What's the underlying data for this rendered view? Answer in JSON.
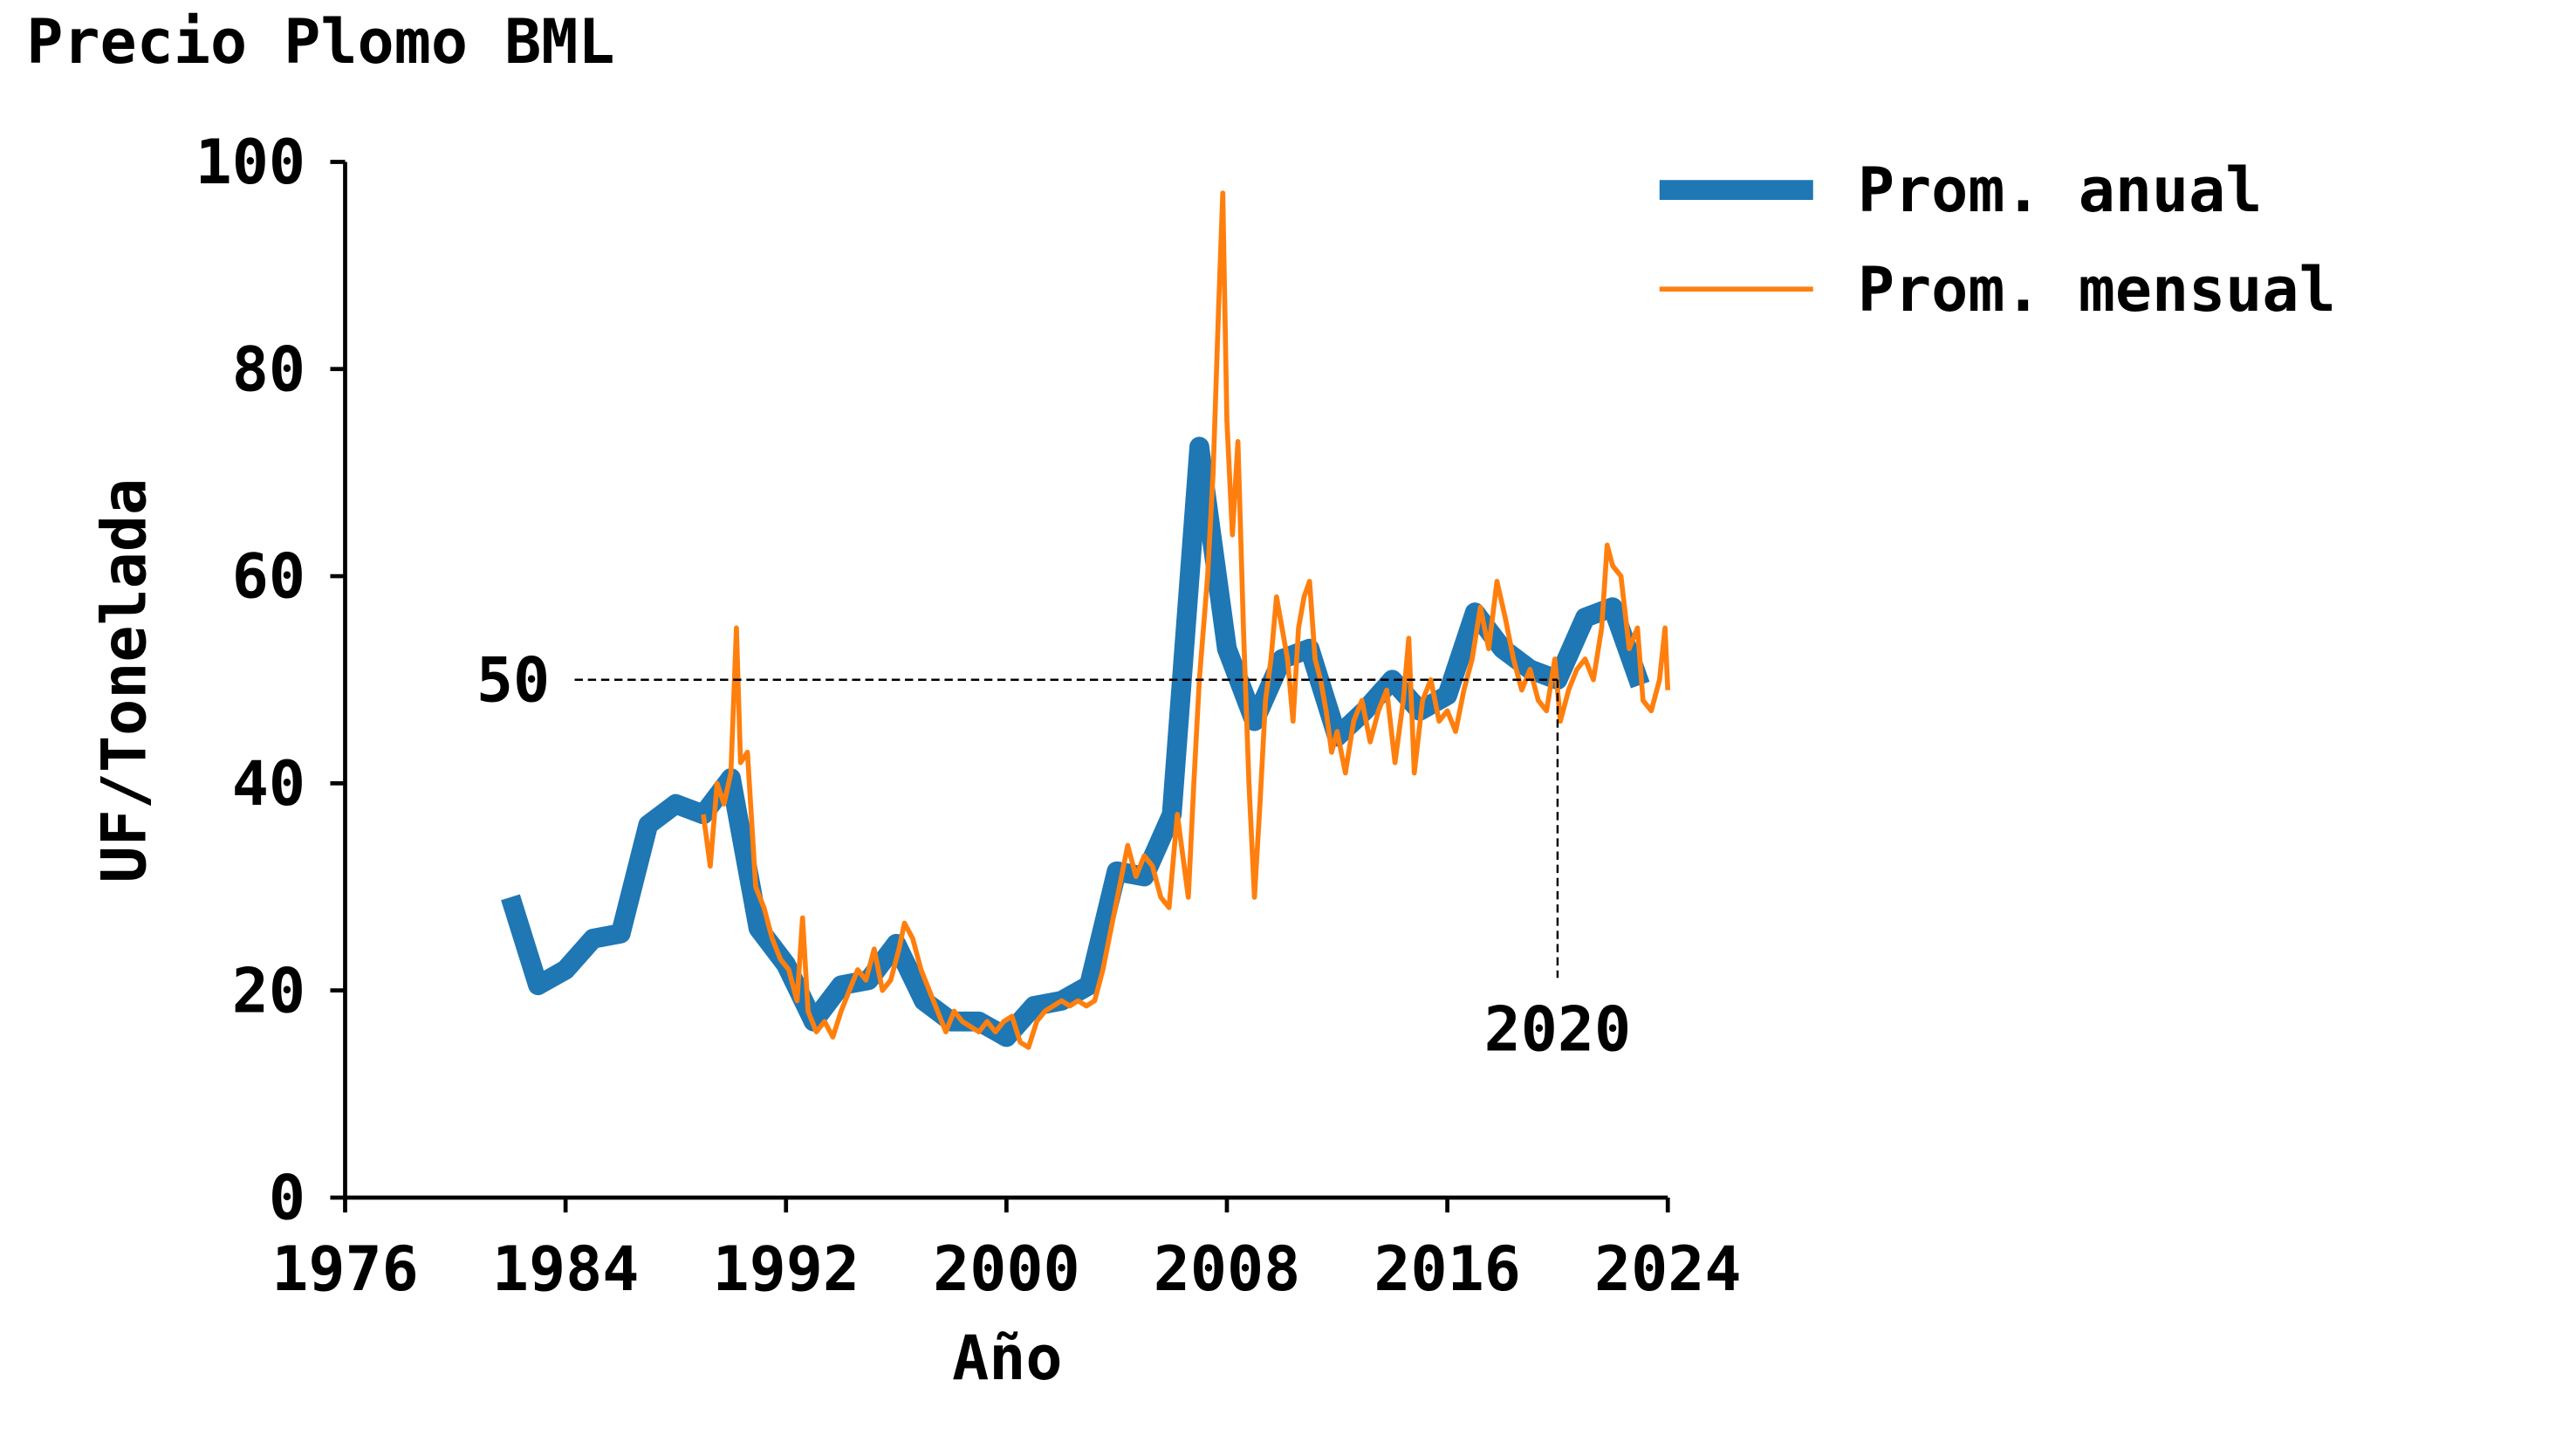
{
  "chart_data": {
    "type": "line",
    "title": "Precio Plomo BML",
    "x_label": "Año",
    "y_label": "UF/Tonelada",
    "xlim": [
      1976,
      2024
    ],
    "xticks": [
      1976,
      1984,
      1992,
      2000,
      2008,
      2016,
      2024
    ],
    "ylim": [
      0,
      100
    ],
    "yticks": [
      0,
      20,
      40,
      60,
      80,
      100
    ],
    "legend": "upper right outside",
    "series": [
      {
        "name": "Prom. anual",
        "color": "#1f77b4",
        "x": [
          1982,
          1983,
          1984,
          1985,
          1986,
          1987,
          1988,
          1989,
          1990,
          1991,
          1992,
          1993,
          1994,
          1995,
          1996,
          1997,
          1998,
          1999,
          2000,
          2001,
          2002,
          2003,
          2004,
          2005,
          2006,
          2007,
          2008,
          2009,
          2010,
          2011,
          2012,
          2013,
          2014,
          2015,
          2016,
          2017,
          2018,
          2019,
          2020,
          2021,
          2022,
          2023
        ],
        "values": [
          29,
          20.5,
          22,
          25,
          25.5,
          36,
          38,
          37,
          40.5,
          26,
          22.5,
          17,
          20.5,
          21,
          24.5,
          19,
          17,
          17,
          15.5,
          18.5,
          19,
          20.5,
          31.5,
          31,
          37,
          72.5,
          53,
          46,
          52,
          53,
          44.5,
          47,
          50,
          47,
          48.5,
          56.5,
          53,
          51,
          50,
          56,
          57,
          49.5
        ]
      },
      {
        "name": "Prom. mensual",
        "color": "#ff7f0e",
        "x": [
          1989.0,
          1989.25,
          1989.5,
          1989.75,
          1990.0,
          1990.2,
          1990.35,
          1990.6,
          1990.9,
          1991.2,
          1991.5,
          1991.8,
          1992.1,
          1992.4,
          1992.6,
          1992.8,
          1993.1,
          1993.4,
          1993.7,
          1994.0,
          1994.3,
          1994.6,
          1994.9,
          1995.2,
          1995.5,
          1995.8,
          1996.1,
          1996.3,
          1996.6,
          1996.9,
          1997.2,
          1997.5,
          1997.8,
          1998.1,
          1998.4,
          1998.7,
          1999.0,
          1999.3,
          1999.6,
          1999.9,
          2000.2,
          2000.5,
          2000.8,
          2001.1,
          2001.4,
          2001.7,
          2002.0,
          2002.3,
          2002.6,
          2002.9,
          2003.2,
          2003.5,
          2003.8,
          2004.1,
          2004.4,
          2004.7,
          2005.0,
          2005.3,
          2005.6,
          2005.9,
          2006.2,
          2006.4,
          2006.6,
          2006.8,
          2007.0,
          2007.3,
          2007.5,
          2007.7,
          2007.85,
          2008.0,
          2008.2,
          2008.4,
          2008.6,
          2008.8,
          2009.0,
          2009.2,
          2009.4,
          2009.6,
          2009.8,
          2010.0,
          2010.2,
          2010.4,
          2010.6,
          2010.8,
          2011.0,
          2011.2,
          2011.4,
          2011.6,
          2011.8,
          2012.0,
          2012.3,
          2012.6,
          2012.9,
          2013.2,
          2013.5,
          2013.8,
          2014.1,
          2014.4,
          2014.6,
          2014.8,
          2015.1,
          2015.4,
          2015.7,
          2016.0,
          2016.3,
          2016.6,
          2016.9,
          2017.2,
          2017.5,
          2017.8,
          2018.1,
          2018.4,
          2018.7,
          2019.0,
          2019.3,
          2019.6,
          2019.9,
          2020.1,
          2020.4,
          2020.7,
          2021.0,
          2021.3,
          2021.6,
          2021.8,
          2022.0,
          2022.3,
          2022.6,
          2022.9,
          2023.1,
          2023.4,
          2023.7,
          2023.9,
          2024.0
        ],
        "values": [
          37,
          32,
          40,
          38,
          41,
          55,
          42,
          43,
          30,
          28,
          25,
          23,
          22,
          19,
          27,
          18,
          16,
          17,
          15.5,
          18,
          20,
          22,
          21,
          24,
          20,
          21,
          24,
          26.5,
          25,
          22,
          20,
          18,
          16,
          18,
          17,
          16.5,
          16,
          17,
          16,
          17,
          17.5,
          15,
          14.5,
          17,
          18,
          18.5,
          19,
          18.5,
          19,
          18.5,
          19,
          22,
          26,
          30,
          34,
          31,
          33,
          32,
          29,
          28,
          37,
          33,
          29,
          40,
          50,
          60,
          70,
          86,
          97,
          75,
          64,
          73,
          55,
          40,
          29,
          38,
          48,
          52,
          58,
          55,
          52,
          46,
          55,
          58,
          59.5,
          52,
          50,
          47,
          43,
          45,
          41,
          46,
          48,
          44,
          47,
          49,
          42,
          48,
          54,
          41,
          48,
          50,
          46,
          47,
          45,
          49,
          52,
          57,
          53,
          59.5,
          56,
          52,
          49,
          51,
          48,
          47,
          52,
          46,
          49,
          51,
          52,
          50,
          55,
          63,
          61,
          60,
          53,
          55,
          48,
          47,
          50,
          55,
          49
        ]
      }
    ],
    "annotations": [
      {
        "text": "50",
        "y": 50
      },
      {
        "text": "2020",
        "x": 2020
      }
    ]
  }
}
